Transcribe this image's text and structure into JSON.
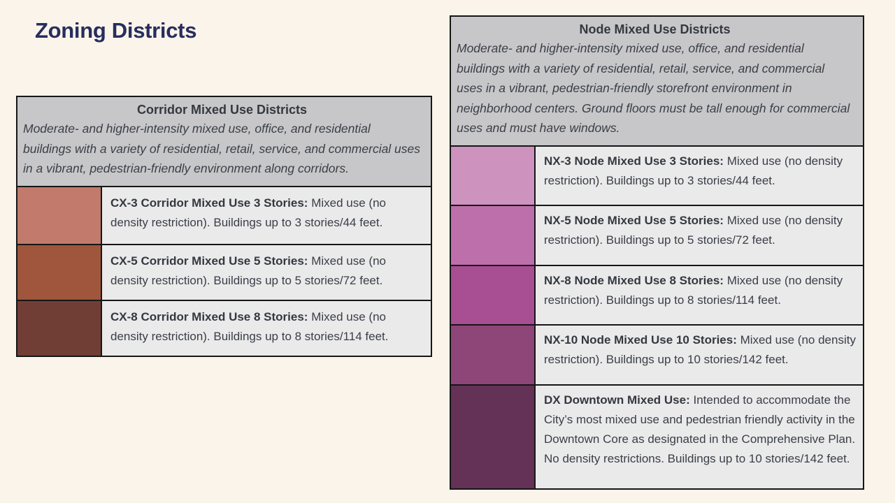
{
  "page": {
    "title": "Zoning Districts",
    "background_color": "#FAF4EA",
    "title_color": "#272D5E"
  },
  "tables": [
    {
      "title": "Corridor Mixed Use Districts",
      "description": "Moderate- and higher-intensity mixed use, office, and residential buildings with a variety of residential, retail, service, and commercial uses in a vibrant, pedestrian-friendly environment along corridors.",
      "rows": [
        {
          "code": "CX-3",
          "label": "CX-3 Corridor Mixed Use 3 Stories:",
          "text": "Mixed use (no density restriction). Buildings up to 3 stories/44 feet.",
          "color": "#C17A6B"
        },
        {
          "code": "CX-5",
          "label": "CX-5 Corridor Mixed Use 5 Stories:",
          "text": "Mixed use (no density restriction). Buildings up to 5 stories/72 feet.",
          "color": "#9F563C"
        },
        {
          "code": "CX-8",
          "label": "CX-8 Corridor Mixed Use 8 Stories:",
          "text": "Mixed use (no density restriction). Buildings up to 8 stories/114 feet.",
          "color": "#713E36"
        }
      ]
    },
    {
      "title": "Node Mixed Use Districts",
      "description": "Moderate- and higher-intensity mixed use, office, and residential buildings with a variety of residential, retail, service, and commercial uses in a vibrant, pedestrian-friendly storefront environment in neighborhood centers. Ground floors must be tall enough for commercial uses and must have windows.",
      "rows": [
        {
          "code": "NX-3",
          "label": "NX-3 Node Mixed Use 3 Stories:",
          "text": "Mixed use (no density restriction). Buildings up to 3 stories/44 feet.",
          "color": "#CE92BE"
        },
        {
          "code": "NX-5",
          "label": "NX-5 Node Mixed Use 5 Stories:",
          "text": "Mixed use (no density restriction). Buildings up to 5 stories/72 feet.",
          "color": "#BD6FAC"
        },
        {
          "code": "NX-8",
          "label": "NX-8 Node Mixed Use 8 Stories:",
          "text": "Mixed use (no density restriction). Buildings up to 8 stories/114 feet.",
          "color": "#A84E92"
        },
        {
          "code": "NX-10",
          "label": "NX-10 Node Mixed Use 10 Stories:",
          "text": "Mixed use (no density restriction). Buildings up to 10 stories/142 feet.",
          "color": "#8E4678"
        },
        {
          "code": "DX",
          "label": "DX Downtown Mixed Use:",
          "text": "Intended to accommodate the City’s most mixed use and pedestrian friendly activity in the Downtown Core as designated in the Comprehensive Plan. No density restrictions. Buildings up to 10 stories/142 feet.",
          "color": "#643157"
        }
      ]
    }
  ]
}
